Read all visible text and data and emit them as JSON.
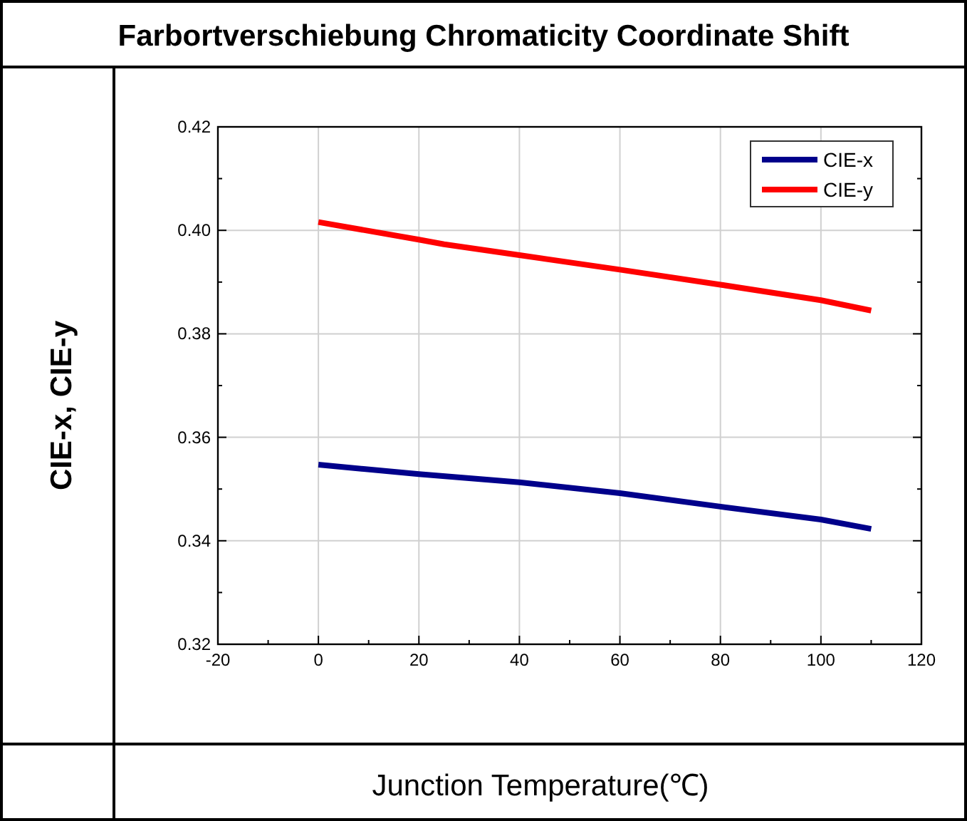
{
  "chart_data": {
    "type": "line",
    "title": "Farbortverschiebung Chromaticity Coordinate Shift",
    "xlabel": "Junction Temperature(℃)",
    "ylabel": "CIE-x, CIE-y",
    "xlim": [
      -20,
      120
    ],
    "ylim": [
      0.32,
      0.42
    ],
    "xticks": [
      -20,
      {
        "value": -10,
        "label": null
      },
      0,
      {
        "value": 10,
        "label": null
      },
      20,
      {
        "value": 30,
        "label": null
      },
      40,
      {
        "value": 50,
        "label": null
      },
      60,
      {
        "value": 70,
        "label": null
      },
      80,
      {
        "value": 90,
        "label": null
      },
      100,
      {
        "value": 110,
        "label": null
      },
      120
    ],
    "yticks": [
      {
        "value": 0.32,
        "label": "0.32"
      },
      {
        "value": 0.33,
        "label": null
      },
      {
        "value": 0.34,
        "label": "0.34"
      },
      {
        "value": 0.35,
        "label": null
      },
      {
        "value": 0.36,
        "label": "0.36"
      },
      {
        "value": 0.37,
        "label": null
      },
      {
        "value": 0.38,
        "label": "0.38"
      },
      {
        "value": 0.39,
        "label": null
      },
      {
        "value": 0.4,
        "label": "0.40"
      },
      {
        "value": 0.41,
        "label": null
      },
      {
        "value": 0.42,
        "label": "0.42"
      }
    ],
    "grid": true,
    "legend": "top right",
    "line_style": "solid",
    "marker": "none",
    "series": [
      {
        "name": "CIE-x",
        "color": "#00008b",
        "x": [
          0,
          20,
          40,
          60,
          80,
          100,
          110
        ],
        "values": [
          0.3547,
          0.3529,
          0.3513,
          0.3492,
          0.3466,
          0.3441,
          0.3423
        ]
      },
      {
        "name": "CIE-y",
        "color": "#ff0000",
        "x": [
          0,
          20,
          25,
          40,
          60,
          80,
          100,
          110
        ],
        "values": [
          0.4016,
          0.3982,
          0.3973,
          0.3952,
          0.3924,
          0.3895,
          0.3865,
          0.3845
        ]
      }
    ]
  }
}
